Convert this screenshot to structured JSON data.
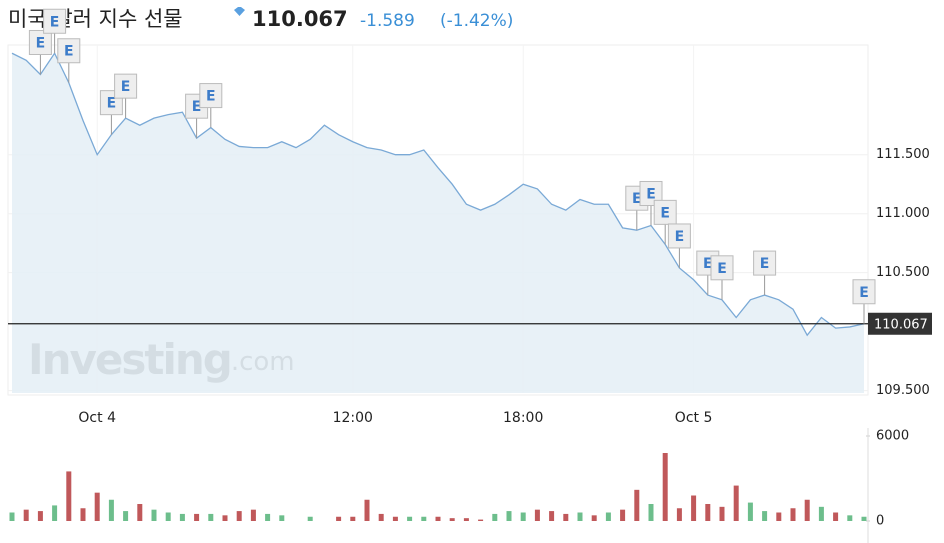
{
  "chart_data": {
    "type": "line",
    "title": "미국 달러 지수 선물",
    "price": "110.067",
    "change": "-1.589",
    "change_pct": "(-1.42%)",
    "watermark": [
      "Investing",
      ".com"
    ],
    "x": [
      0,
      1,
      2,
      3,
      4,
      5,
      6,
      7,
      8,
      9,
      10,
      11,
      12,
      13,
      14,
      15,
      16,
      17,
      18,
      19,
      20,
      21,
      22,
      23,
      24,
      25,
      26,
      27,
      28,
      29,
      30,
      31,
      32,
      33,
      34,
      35,
      36,
      37,
      38,
      39,
      40,
      41,
      42,
      43,
      44,
      45,
      46,
      47,
      48,
      49,
      50,
      51,
      52,
      53,
      54,
      55,
      56,
      57,
      58,
      59,
      60
    ],
    "xlim": [
      0,
      60
    ],
    "xticks": [
      {
        "value": 6,
        "label": "Oct 4"
      },
      {
        "value": 24,
        "label": "12:00"
      },
      {
        "value": 36,
        "label": "18:00"
      },
      {
        "value": 48,
        "label": "Oct 5"
      }
    ],
    "series": [
      {
        "name": "미국 달러 지수 선물",
        "color": "#7aa9d6",
        "fill": "#e4eef6",
        "values": [
          112.36,
          112.3,
          112.18,
          112.36,
          112.11,
          111.79,
          111.5,
          111.67,
          111.81,
          111.75,
          111.81,
          111.84,
          111.86,
          111.64,
          111.73,
          111.63,
          111.57,
          111.56,
          111.56,
          111.61,
          111.56,
          111.63,
          111.75,
          111.67,
          111.61,
          111.56,
          111.54,
          111.5,
          111.5,
          111.54,
          111.39,
          111.25,
          111.08,
          111.03,
          111.08,
          111.16,
          111.25,
          111.21,
          111.08,
          111.03,
          111.12,
          111.08,
          111.08,
          110.88,
          110.86,
          110.9,
          110.74,
          110.54,
          110.44,
          110.31,
          110.27,
          110.12,
          110.27,
          110.31,
          110.27,
          110.19,
          109.97,
          110.12,
          110.03,
          110.04,
          110.067
        ]
      }
    ],
    "ylim": [
      109.48,
      112.43
    ],
    "yticks": [
      {
        "value": 109.5,
        "label": "109.500"
      },
      {
        "value": 110.5,
        "label": "110.500"
      },
      {
        "value": 111,
        "label": "111.000"
      },
      {
        "value": 111.5,
        "label": "111.500"
      }
    ],
    "last_value": 110.067,
    "events": [
      {
        "label": "E",
        "x": 2
      },
      {
        "label": "E",
        "x": 3
      },
      {
        "label": "E",
        "x": 4
      },
      {
        "label": "E",
        "x": 7
      },
      {
        "label": "E",
        "x": 8
      },
      {
        "label": "E",
        "x": 13
      },
      {
        "label": "E",
        "x": 14
      },
      {
        "label": "E",
        "x": 44
      },
      {
        "label": "E",
        "x": 45
      },
      {
        "label": "E",
        "x": 46
      },
      {
        "label": "E",
        "x": 47
      },
      {
        "label": "E",
        "x": 49
      },
      {
        "label": "E",
        "x": 50
      },
      {
        "label": "E",
        "x": 53
      },
      {
        "label": "E",
        "x": 60
      }
    ],
    "volume": {
      "values": [
        600,
        800,
        700,
        1100,
        3500,
        900,
        2000,
        1500,
        700,
        1200,
        800,
        600,
        500,
        500,
        500,
        400,
        700,
        800,
        500,
        400,
        0,
        300,
        0,
        300,
        300,
        1500,
        500,
        300,
        300,
        300,
        300,
        200,
        200,
        100,
        500,
        700,
        600,
        800,
        700,
        500,
        600,
        400,
        600,
        800,
        2200,
        1200,
        4800,
        900,
        1800,
        1200,
        1000,
        2500,
        1300,
        700,
        600,
        900,
        1500,
        1000,
        600,
        400,
        300
      ],
      "ylim": [
        0,
        6000
      ],
      "yticks": [
        0,
        6000
      ],
      "up_color": "#6dbe8c",
      "down_color": "#c0585a"
    }
  }
}
